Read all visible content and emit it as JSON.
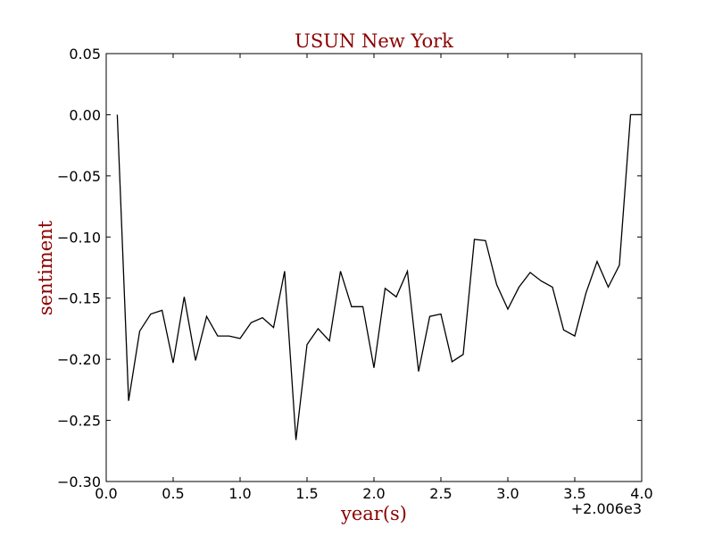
{
  "chart_data": {
    "type": "line",
    "title": "USUN New York",
    "xlabel": "year(s)",
    "ylabel": "sentiment",
    "x_offset_label": "+2.006e3",
    "xlim": [
      0.0,
      4.0
    ],
    "ylim": [
      -0.3,
      0.05
    ],
    "xticks": [
      0.0,
      0.5,
      1.0,
      1.5,
      2.0,
      2.5,
      3.0,
      3.5,
      4.0
    ],
    "xtick_labels": [
      "0.0",
      "0.5",
      "1.0",
      "1.5",
      "2.0",
      "2.5",
      "3.0",
      "3.5",
      "4.0"
    ],
    "yticks": [
      0.05,
      0.0,
      -0.05,
      -0.1,
      -0.15,
      -0.2,
      -0.25,
      -0.3
    ],
    "ytick_labels": [
      "0.05",
      "0.00",
      "−0.05",
      "−0.10",
      "−0.15",
      "−0.20",
      "−0.25",
      "−0.30"
    ],
    "grid": false,
    "colors": {
      "title": "#8b0000",
      "labels": "#8b0000",
      "line": "#000000"
    },
    "series": [
      {
        "x": [
          0.083,
          0.167,
          0.25,
          0.333,
          0.417,
          0.5,
          0.583,
          0.667,
          0.75,
          0.833,
          0.917,
          1.0,
          1.083,
          1.167,
          1.25,
          1.333,
          1.417,
          1.5,
          1.583,
          1.667,
          1.75,
          1.833,
          1.917,
          2.0,
          2.083,
          2.167,
          2.25,
          2.333,
          2.417,
          2.5,
          2.583,
          2.667,
          2.75,
          2.833,
          2.917,
          3.0,
          3.083,
          3.167,
          3.25,
          3.333,
          3.417,
          3.5,
          3.583,
          3.667,
          3.75,
          3.833,
          3.917,
          4.0
        ],
        "values": [
          0.0,
          -0.234,
          -0.177,
          -0.163,
          -0.16,
          -0.203,
          -0.149,
          -0.201,
          -0.165,
          -0.181,
          -0.181,
          -0.183,
          -0.17,
          -0.166,
          -0.174,
          -0.128,
          -0.266,
          -0.188,
          -0.175,
          -0.185,
          -0.128,
          -0.157,
          -0.157,
          -0.207,
          -0.142,
          -0.149,
          -0.128,
          -0.21,
          -0.165,
          -0.163,
          -0.202,
          -0.196,
          -0.102,
          -0.103,
          -0.139,
          -0.159,
          -0.141,
          -0.129,
          -0.136,
          -0.141,
          -0.176,
          -0.181,
          -0.146,
          -0.12,
          -0.141,
          -0.123,
          0.0,
          0.0
        ]
      }
    ]
  }
}
